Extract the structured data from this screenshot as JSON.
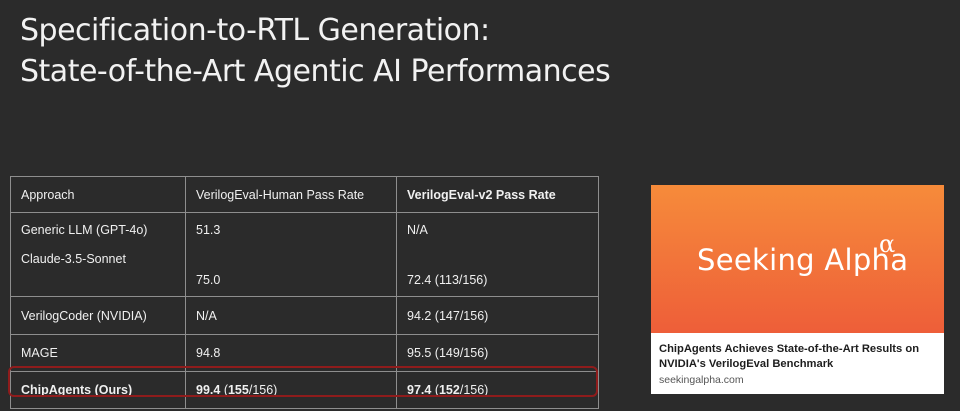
{
  "slide": {
    "title_line1": "Specification-to-RTL Generation:",
    "title_line2": "State-of-the-Art Agentic AI Performances"
  },
  "table": {
    "headers": [
      "Approach",
      "VerilogEval-Human Pass Rate",
      "VerilogEval-v2 Pass Rate"
    ],
    "rows": [
      {
        "approach": "Generic LLM (GPT-4o)",
        "human": "51.3",
        "v2": "N/A"
      },
      {
        "approach": "Claude-3.5-Sonnet",
        "human": "75.0",
        "v2": "72.4 (113/156)"
      },
      {
        "approach": "VerilogCoder (NVIDIA)",
        "human": "N/A",
        "v2": "94.2 (147/156)"
      },
      {
        "approach": "MAGE",
        "human": "94.8",
        "v2": "95.5 (149/156)"
      }
    ],
    "ours": {
      "approach": "ChipAgents (Ours)",
      "human_score": "99.4",
      "human_open": " (",
      "human_passed": "155",
      "human_total": "/156)",
      "v2_score": "97.4",
      "v2_open": " (",
      "v2_passed": "152",
      "v2_total": "/156)"
    },
    "highlight_color": "#8f1c1c"
  },
  "news_card": {
    "brand": "Seeking Alpha",
    "brand_symbol": "α",
    "headline": "ChipAgents Achieves State-of-the-Art Results on NVIDIA's VerilogEval Benchmark",
    "source": "seekingalpha.com",
    "image_gradient": [
      "#f68b3a",
      "#ee5e39"
    ]
  }
}
